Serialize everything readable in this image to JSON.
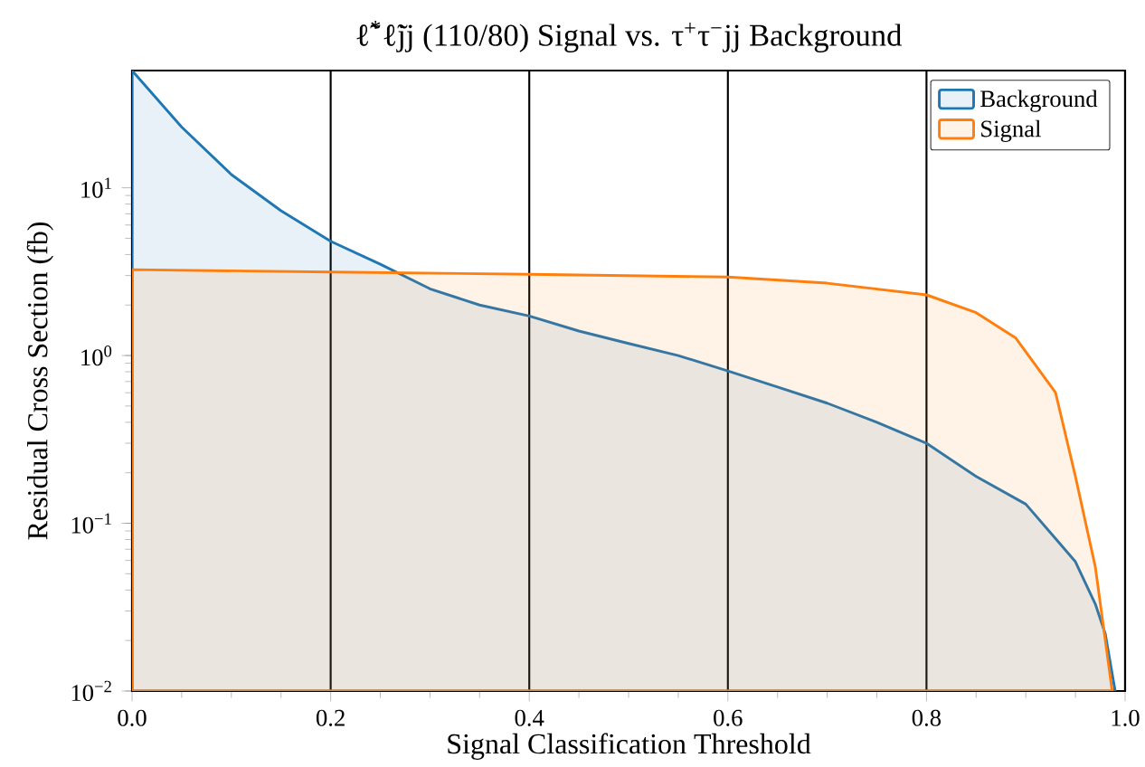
{
  "chart_data": {
    "type": "area",
    "title": "ℓ̃$^{*}$ℓ̃jj (110/80) Signal vs. τ$^{+}$τ$^{−}$jj Background",
    "xlabel": "Signal Classification Threshold",
    "ylabel": "Residual Cross Section (fb)",
    "log": "y",
    "grid": "x",
    "legend": "top right",
    "xlim": [
      0.0,
      1.0
    ],
    "ylim": [
      0.01,
      50
    ],
    "xticks": [
      {
        "value": 0.0,
        "label": "0.0"
      },
      {
        "value": 0.2,
        "label": "0.2"
      },
      {
        "value": 0.4,
        "label": "0.4"
      },
      {
        "value": 0.6,
        "label": "0.6"
      },
      {
        "value": 0.8,
        "label": "0.8"
      },
      {
        "value": 1.0,
        "label": "1.0"
      }
    ],
    "yticks": [
      {
        "value": 0.01,
        "label": "10$^{−2}$"
      },
      {
        "value": 0.1,
        "label": "10$^{−1}$"
      },
      {
        "value": 1,
        "label": "10$^{0}$"
      },
      {
        "value": 10,
        "label": "10$^{1}$"
      }
    ],
    "series": [
      {
        "name": "Background",
        "color": "#1f77b4",
        "x": [
          0.0,
          0.05,
          0.1,
          0.15,
          0.2,
          0.25,
          0.3,
          0.35,
          0.4,
          0.45,
          0.5,
          0.55,
          0.6,
          0.65,
          0.7,
          0.75,
          0.8,
          0.85,
          0.9,
          0.93,
          0.95,
          0.97,
          0.98,
          0.99
        ],
        "values": [
          50,
          23,
          12,
          7.3,
          4.8,
          3.5,
          2.5,
          2.0,
          1.72,
          1.4,
          1.18,
          1.0,
          0.81,
          0.65,
          0.52,
          0.4,
          0.3,
          0.19,
          0.13,
          0.081,
          0.059,
          0.033,
          0.022,
          0.01
        ]
      },
      {
        "name": "Signal",
        "color": "#ff7f0e",
        "x": [
          0.0,
          0.2,
          0.4,
          0.6,
          0.7,
          0.8,
          0.85,
          0.89,
          0.93,
          0.95,
          0.97,
          0.987
        ],
        "values": [
          3.25,
          3.15,
          3.05,
          2.94,
          2.7,
          2.3,
          1.8,
          1.27,
          0.6,
          0.19,
          0.055,
          0.01
        ]
      }
    ]
  }
}
